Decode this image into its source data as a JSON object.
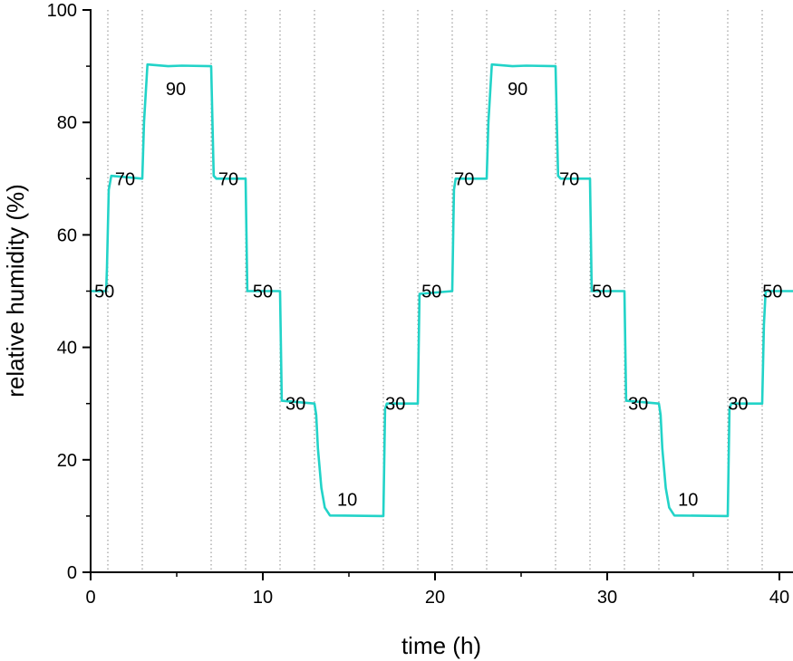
{
  "chart_data": {
    "type": "line",
    "title": "",
    "xlabel": "time (h)",
    "ylabel": "relative humidity (%)",
    "xlim": [
      0,
      40.8
    ],
    "ylim": [
      0,
      100
    ],
    "xticks": [
      0,
      10,
      20,
      30,
      40
    ],
    "xminor": [
      5,
      15,
      25,
      35
    ],
    "yticks": [
      0,
      20,
      40,
      60,
      80,
      100
    ],
    "yminor": [
      10,
      30,
      50,
      70,
      90
    ],
    "grid": false,
    "step_boundaries": [
      1,
      3,
      7,
      9,
      11,
      13,
      17,
      19,
      21,
      23,
      27,
      29,
      31,
      33,
      37,
      39
    ],
    "line_color": "#22d3c8",
    "series": [
      {
        "x": [
          0,
          0.9,
          0.95,
          1.05,
          1.2,
          3.0,
          3.1,
          3.3,
          4.5,
          5.3,
          7.0,
          7.15,
          7.3,
          9.0,
          9.1,
          11.0,
          11.1,
          13.0,
          13.1,
          13.2,
          13.4,
          13.6,
          13.9,
          17.0,
          17.1,
          17.2,
          19.0,
          19.1,
          21.0,
          21.1,
          21.2,
          23.0,
          23.1,
          23.3,
          24.5,
          25.3,
          27.0,
          27.15,
          27.3,
          29.0,
          29.1,
          31.0,
          31.1,
          33.0,
          33.1,
          33.2,
          33.4,
          33.6,
          33.9,
          37.0,
          37.1,
          37.2,
          39.0,
          39.1,
          39.2,
          40.8
        ],
        "y": [
          50,
          50,
          54,
          68,
          70.5,
          70,
          80,
          90.3,
          90,
          90.1,
          90,
          70.5,
          70,
          70,
          50,
          50,
          30.5,
          30,
          28,
          22,
          15,
          11.5,
          10.1,
          10,
          29,
          30,
          30,
          49.5,
          50,
          68,
          70,
          70,
          80,
          90.3,
          90,
          90.1,
          90,
          70.5,
          70,
          70,
          50,
          50,
          30.5,
          30,
          28,
          22,
          15,
          11.5,
          10.1,
          10,
          29,
          30,
          30,
          44,
          50,
          50
        ]
      }
    ],
    "annotations": [
      {
        "text": "50",
        "x": 0.8,
        "y": 50
      },
      {
        "text": "70",
        "x": 2.0,
        "y": 70
      },
      {
        "text": "90",
        "x": 4.95,
        "y": 86
      },
      {
        "text": "70",
        "x": 8.0,
        "y": 70
      },
      {
        "text": "50",
        "x": 10.0,
        "y": 50
      },
      {
        "text": "30",
        "x": 11.9,
        "y": 30
      },
      {
        "text": "10",
        "x": 14.9,
        "y": 13
      },
      {
        "text": "30",
        "x": 17.7,
        "y": 30
      },
      {
        "text": "50",
        "x": 19.8,
        "y": 50
      },
      {
        "text": "70",
        "x": 21.7,
        "y": 70
      },
      {
        "text": "90",
        "x": 24.8,
        "y": 86
      },
      {
        "text": "70",
        "x": 27.8,
        "y": 70
      },
      {
        "text": "50",
        "x": 29.7,
        "y": 50
      },
      {
        "text": "30",
        "x": 31.8,
        "y": 30
      },
      {
        "text": "10",
        "x": 34.7,
        "y": 13
      },
      {
        "text": "30",
        "x": 37.6,
        "y": 30
      },
      {
        "text": "50",
        "x": 39.6,
        "y": 50
      }
    ]
  }
}
